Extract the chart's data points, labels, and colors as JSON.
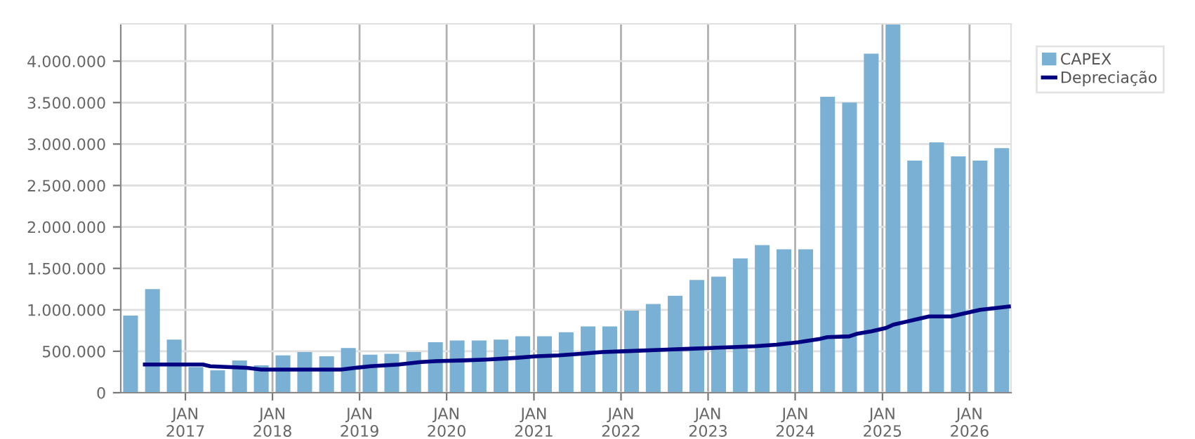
{
  "chart_data": {
    "type": "bar",
    "x": [
      "2016-05-16",
      "2016-08-16",
      "2016-11-15",
      "2017-02-14",
      "2017-05-16",
      "2017-08-16",
      "2017-11-15",
      "2018-02-14",
      "2018-05-16",
      "2018-08-16",
      "2018-11-15",
      "2019-02-14",
      "2019-05-16",
      "2019-08-16",
      "2019-11-15",
      "2020-02-14",
      "2020-05-16",
      "2020-08-16",
      "2020-11-15",
      "2021-02-14",
      "2021-05-16",
      "2021-08-16",
      "2021-11-15",
      "2022-02-14",
      "2022-05-16",
      "2022-08-16",
      "2022-11-15",
      "2023-02-14",
      "2023-05-16",
      "2023-08-16",
      "2023-11-15",
      "2024-02-14",
      "2024-05-16",
      "2024-08-16",
      "2024-11-15",
      "2025-02-14",
      "2025-05-16",
      "2025-08-16",
      "2025-11-15",
      "2026-02-14",
      "2026-05-16"
    ],
    "series": [
      {
        "name": "CAPEX",
        "color": "#7ab0d3",
        "values": [
          930000,
          1250000,
          640000,
          310000,
          270000,
          390000,
          330000,
          450000,
          490000,
          440000,
          540000,
          460000,
          470000,
          490000,
          610000,
          630000,
          630000,
          640000,
          680000,
          680000,
          730000,
          800000,
          800000,
          990000,
          1070000,
          1170000,
          1360000,
          1400000,
          1620000,
          1780000,
          1730000,
          1730000,
          3570000,
          3500000,
          4090000,
          4450000,
          2800000,
          3020000,
          2850000,
          2800000,
          2950000
        ]
      },
      {
        "name": "Depreciação",
        "type": "line",
        "color": "#000080",
        "x": [
          "2016-07",
          "2017-03",
          "2017-04",
          "2017-09",
          "2017-11",
          "2018-10",
          "2018-12",
          "2019-02",
          "2019-06",
          "2019-09",
          "2019-11",
          "2020-03",
          "2020-06",
          "2020-10",
          "2021-01",
          "2021-04",
          "2021-07",
          "2021-10",
          "2022-01",
          "2022-07",
          "2022-10",
          "2023-04",
          "2023-07",
          "2023-10",
          "2024-01",
          "2024-04",
          "2024-05",
          "2024-08",
          "2024-09",
          "2024-11",
          "2025-01",
          "2025-02",
          "2025-04",
          "2025-05",
          "2025-07",
          "2025-10",
          "2025-12",
          "2026-02",
          "2026-04",
          "2026-06"
        ],
        "values": [
          340000,
          340000,
          320000,
          300000,
          280000,
          280000,
          300000,
          320000,
          340000,
          370000,
          380000,
          390000,
          400000,
          420000,
          440000,
          450000,
          470000,
          490000,
          500000,
          520000,
          530000,
          550000,
          560000,
          580000,
          610000,
          650000,
          670000,
          680000,
          710000,
          740000,
          780000,
          820000,
          860000,
          880000,
          920000,
          920000,
          960000,
          1000000,
          1020000,
          1040000
        ]
      }
    ],
    "xlim": [
      "2016-04-05",
      "2026-06-24"
    ],
    "xticks": [
      {
        "value": "2017-01-01",
        "label": "JAN\n2017"
      },
      {
        "value": "2018-01-01",
        "label": "JAN\n2018"
      },
      {
        "value": "2019-01-01",
        "label": "JAN\n2019"
      },
      {
        "value": "2020-01-01",
        "label": "JAN\n2020"
      },
      {
        "value": "2021-01-01",
        "label": "JAN\n2021"
      },
      {
        "value": "2022-01-01",
        "label": "JAN\n2022"
      },
      {
        "value": "2023-01-01",
        "label": "JAN\n2023"
      },
      {
        "value": "2024-01-01",
        "label": "JAN\n2024"
      },
      {
        "value": "2025-01-01",
        "label": "JAN\n2025"
      },
      {
        "value": "2026-01-01",
        "label": "JAN\n2026"
      }
    ],
    "ylim": [
      0,
      4450000
    ],
    "yticks": [
      0,
      {
        "value": 500000,
        "label": "500.000"
      },
      {
        "value": 1000000,
        "label": "1.000.000"
      },
      {
        "value": 1500000,
        "label": "1.500.000"
      },
      {
        "value": 2000000,
        "label": "2.000.000"
      },
      {
        "value": 2500000,
        "label": "2.500.000"
      },
      {
        "value": 3000000,
        "label": "3.000.000"
      },
      {
        "value": 3500000,
        "label": "3.500.000"
      },
      {
        "value": 4000000,
        "label": "4.000.000"
      }
    ],
    "grid": true,
    "legend": "top right"
  }
}
